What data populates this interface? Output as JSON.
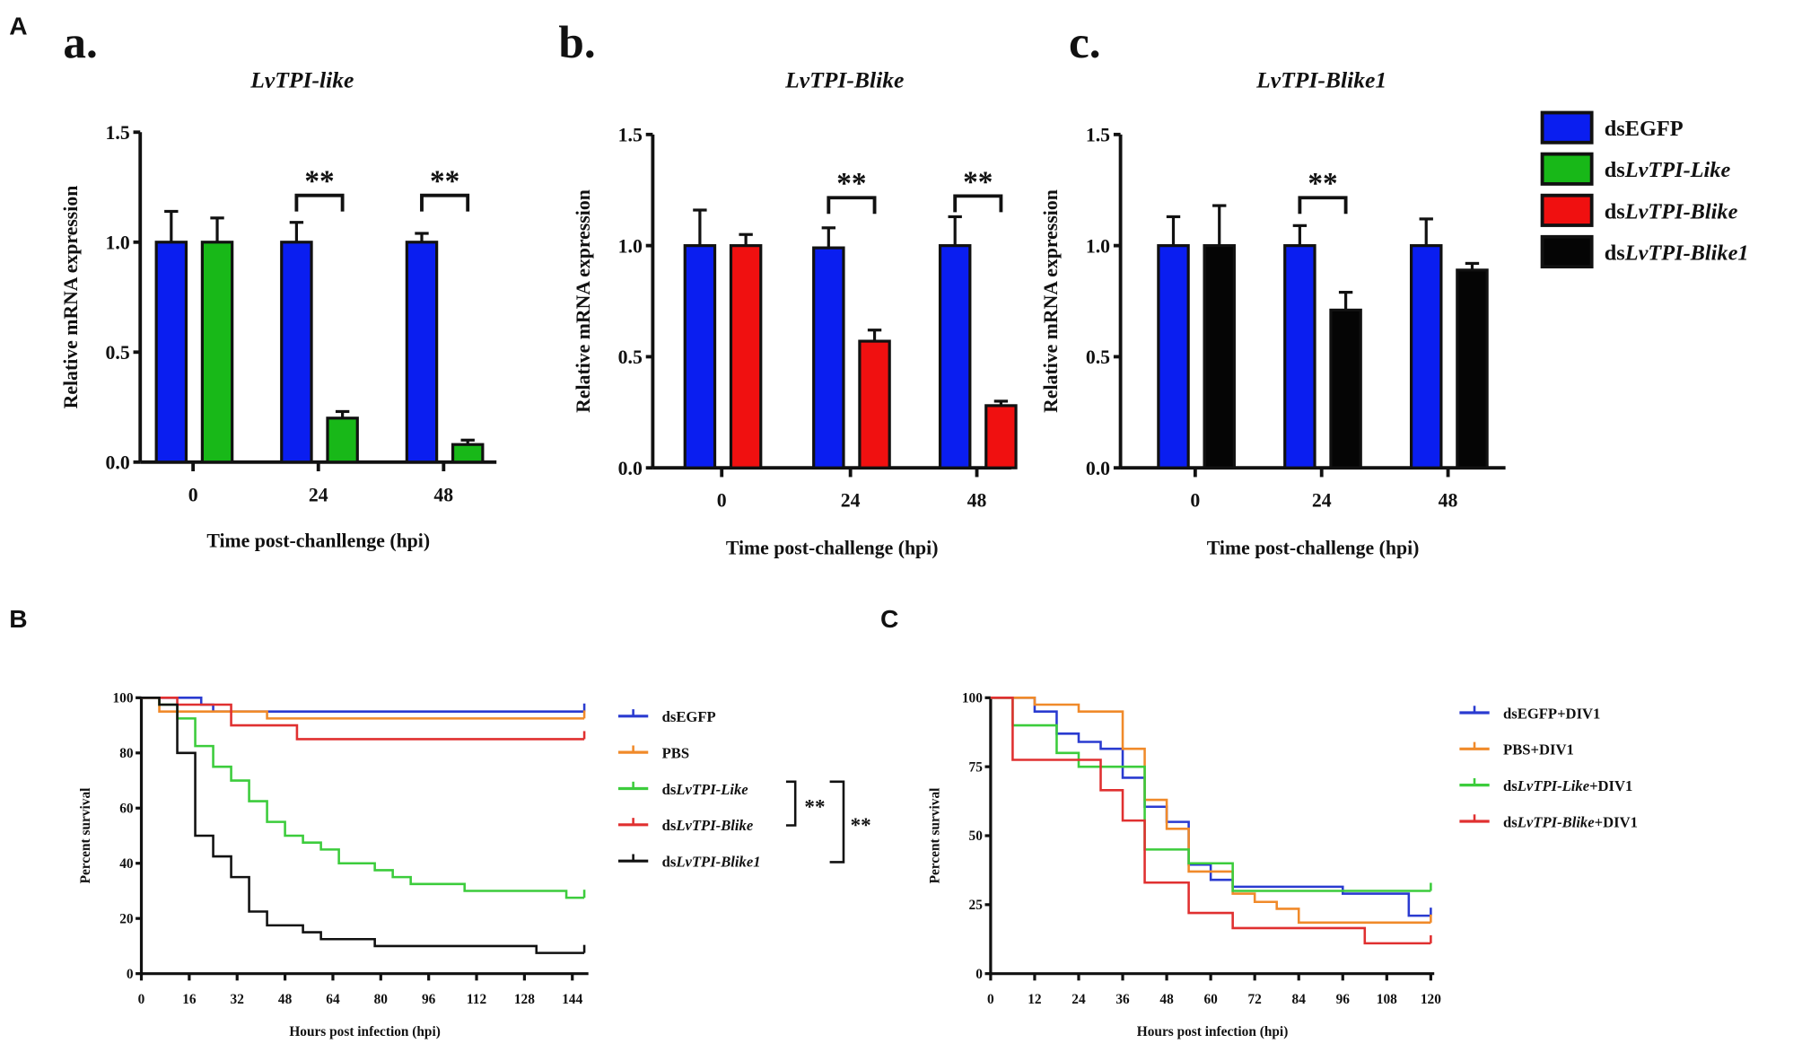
{
  "panel_labels": [
    "A",
    "B",
    "C"
  ],
  "sub_labels": [
    "a.",
    "b.",
    "c."
  ],
  "colors": {
    "dsEGFP": "#0a1ef0",
    "dsLvTPI-Like": "#18b818",
    "dsLvTPI-Blike": "#f01010",
    "dsLvTPI-Blike1": "#050505",
    "PBS": "#f08a2a",
    "surv_blue": "#2a3bd0",
    "surv_green": "#3ccc3c",
    "surv_red": "#e03030",
    "surv_black": "#111111"
  },
  "bar_legend": [
    {
      "prefix": "ds",
      "italic": "",
      "suffix": "EGFP",
      "color": "#0a1ef0"
    },
    {
      "prefix": "ds",
      "italic": "LvTPI-Like",
      "suffix": "",
      "color": "#18b818"
    },
    {
      "prefix": "ds",
      "italic": "LvTPI-Blike",
      "suffix": "",
      "color": "#f01010"
    },
    {
      "prefix": "ds",
      "italic": "LvTPI-Blike1",
      "suffix": "",
      "color": "#050505"
    }
  ],
  "chart_data": [
    {
      "type": "bar",
      "title": "LvTPI-like",
      "xlabel": "Time post-chanllenge (hpi)",
      "ylabel": "Relative mRNA expression",
      "ylim": [
        0,
        1.5
      ],
      "yticks": [
        "0.0",
        "0.5",
        "1.0",
        "1.5"
      ],
      "categories": [
        "0",
        "24",
        "48"
      ],
      "series": [
        {
          "name": "dsEGFP",
          "values": [
            1.0,
            1.0,
            1.0
          ],
          "errors": [
            0.14,
            0.09,
            0.04
          ],
          "color": "#0a1ef0"
        },
        {
          "name": "dsLvTPI-Like",
          "values": [
            1.0,
            0.2,
            0.08
          ],
          "errors": [
            0.11,
            0.03,
            0.02
          ],
          "color": "#18b818"
        }
      ],
      "significance": [
        {
          "category": "24",
          "label": "**"
        },
        {
          "category": "48",
          "label": "**"
        }
      ]
    },
    {
      "type": "bar",
      "title": "LvTPI-Blike",
      "xlabel": "Time post-challenge (hpi)",
      "ylabel": "Relative mRNA expression",
      "ylim": [
        0,
        1.5
      ],
      "yticks": [
        "0.0",
        "0.5",
        "1.0",
        "1.5"
      ],
      "categories": [
        "0",
        "24",
        "48"
      ],
      "series": [
        {
          "name": "dsEGFP",
          "values": [
            1.0,
            0.99,
            1.0
          ],
          "errors": [
            0.16,
            0.09,
            0.13
          ],
          "color": "#0a1ef0"
        },
        {
          "name": "dsLvTPI-Blike",
          "values": [
            1.0,
            0.57,
            0.28
          ],
          "errors": [
            0.05,
            0.05,
            0.02
          ],
          "color": "#f01010"
        }
      ],
      "significance": [
        {
          "category": "24",
          "label": "**"
        },
        {
          "category": "48",
          "label": "**"
        }
      ]
    },
    {
      "type": "bar",
      "title": "LvTPI-Blike1",
      "xlabel": "Time post-challenge (hpi)",
      "ylabel": "Relative mRNA expression",
      "ylim": [
        0,
        1.5
      ],
      "yticks": [
        "0.0",
        "0.5",
        "1.0",
        "1.5"
      ],
      "categories": [
        "0",
        "24",
        "48"
      ],
      "series": [
        {
          "name": "dsEGFP",
          "values": [
            1.0,
            1.0,
            1.0
          ],
          "errors": [
            0.13,
            0.09,
            0.12
          ],
          "color": "#0a1ef0"
        },
        {
          "name": "dsLvTPI-Blike1",
          "values": [
            1.0,
            0.71,
            0.89
          ],
          "errors": [
            0.18,
            0.08,
            0.03
          ],
          "color": "#050505"
        }
      ],
      "significance": [
        {
          "category": "24",
          "label": "**"
        }
      ]
    },
    {
      "type": "line",
      "step": true,
      "xlabel": "Hours post infection (hpi)",
      "ylabel": "Percent survival",
      "xlim": [
        0,
        148
      ],
      "ylim": [
        0,
        100
      ],
      "xticks": [
        0,
        16,
        32,
        48,
        64,
        80,
        96,
        112,
        128,
        144
      ],
      "yticks": [
        0,
        20,
        40,
        60,
        80,
        100
      ],
      "series": [
        {
          "name": "dsEGFP",
          "prefix": "ds",
          "italic": "",
          "suffix": "EGFP",
          "color": "#2a3bd0",
          "x": [
            0,
            20,
            24,
            148
          ],
          "y": [
            100,
            97.5,
            95,
            95
          ]
        },
        {
          "name": "PBS",
          "prefix": "PBS",
          "italic": "",
          "suffix": "",
          "color": "#f08a2a",
          "x": [
            0,
            6,
            16,
            24,
            42,
            148
          ],
          "y": [
            100,
            95,
            95,
            95,
            92.5,
            92.5
          ]
        },
        {
          "name": "dsLvTPI-Like",
          "prefix": "ds",
          "italic": "LvTPI-Like",
          "suffix": "",
          "color": "#3ccc3c",
          "x": [
            0,
            6,
            12,
            18,
            24,
            30,
            36,
            42,
            48,
            54,
            60,
            66,
            78,
            84,
            90,
            108,
            142,
            148
          ],
          "y": [
            100,
            97.5,
            92.5,
            82.5,
            75,
            70,
            62.5,
            55,
            50,
            47.5,
            45,
            40,
            37.5,
            35,
            32.5,
            30,
            27.5,
            27.5
          ]
        },
        {
          "name": "dsLvTPI-Blike",
          "prefix": "ds",
          "italic": "LvTPI-Blike",
          "suffix": "",
          "color": "#e03030",
          "x": [
            0,
            12,
            30,
            52,
            148
          ],
          "y": [
            100,
            97.5,
            90,
            85,
            85
          ]
        },
        {
          "name": "dsLvTPI-Blike1",
          "prefix": "ds",
          "italic": "LvTPI-Blike1",
          "suffix": "",
          "color": "#111111",
          "x": [
            0,
            6,
            12,
            18,
            24,
            30,
            36,
            42,
            54,
            60,
            78,
            132,
            148
          ],
          "y": [
            100,
            97.5,
            80,
            50,
            42.5,
            35,
            22.5,
            17.5,
            15,
            12.5,
            10,
            7.5,
            7.5
          ]
        }
      ],
      "significance": [
        {
          "between": [
            "dsLvTPI-Like",
            "dsLvTPI-Blike"
          ],
          "label": "**"
        },
        {
          "between": [
            "dsLvTPI-Like",
            "dsLvTPI-Blike1"
          ],
          "label": "**"
        }
      ],
      "legend": "right"
    },
    {
      "type": "line",
      "step": true,
      "xlabel": "Hours post infection (hpi)",
      "ylabel": "Percent survival",
      "xlim": [
        0,
        120
      ],
      "ylim": [
        0,
        100
      ],
      "xticks": [
        0,
        12,
        24,
        36,
        48,
        60,
        72,
        84,
        96,
        108,
        120
      ],
      "yticks": [
        0,
        25,
        50,
        75,
        100
      ],
      "series": [
        {
          "name": "dsEGFP+DIV1",
          "prefix": "ds",
          "italic": "",
          "suffix": "EGFP+DIV1",
          "color": "#2a3bd0",
          "x": [
            0,
            12,
            18,
            24,
            30,
            36,
            42,
            48,
            54,
            60,
            66,
            96,
            114,
            120
          ],
          "y": [
            100,
            95,
            87,
            84,
            81.5,
            71,
            60.5,
            55,
            39.5,
            34,
            31.5,
            29,
            21,
            21
          ]
        },
        {
          "name": "PBS+DIV1",
          "prefix": "PBS+DIV1",
          "italic": "",
          "suffix": "",
          "color": "#f08a2a",
          "x": [
            0,
            12,
            24,
            36,
            42,
            48,
            54,
            66,
            72,
            78,
            84,
            120
          ],
          "y": [
            100,
            97.5,
            95,
            81.5,
            63,
            52.5,
            37,
            29,
            26,
            23.5,
            18.5,
            18.5
          ]
        },
        {
          "name": "dsLvTPI-Like+DIV1",
          "prefix": "ds",
          "italic": "LvTPI-Like",
          "suffix": "+DIV1",
          "color": "#3ccc3c",
          "x": [
            0,
            6,
            18,
            24,
            42,
            54,
            66,
            120
          ],
          "y": [
            100,
            90,
            80,
            75,
            45,
            40,
            30,
            30
          ]
        },
        {
          "name": "dsLvTPI-Blike+DIV1",
          "prefix": "ds",
          "italic": "LvTPI-Blike",
          "suffix": "+DIV1",
          "color": "#e03030",
          "x": [
            0,
            6,
            30,
            36,
            42,
            54,
            66,
            102,
            120
          ],
          "y": [
            100,
            77.5,
            66.5,
            55.5,
            33,
            22,
            16.5,
            11,
            11
          ]
        }
      ],
      "legend": "right"
    }
  ]
}
